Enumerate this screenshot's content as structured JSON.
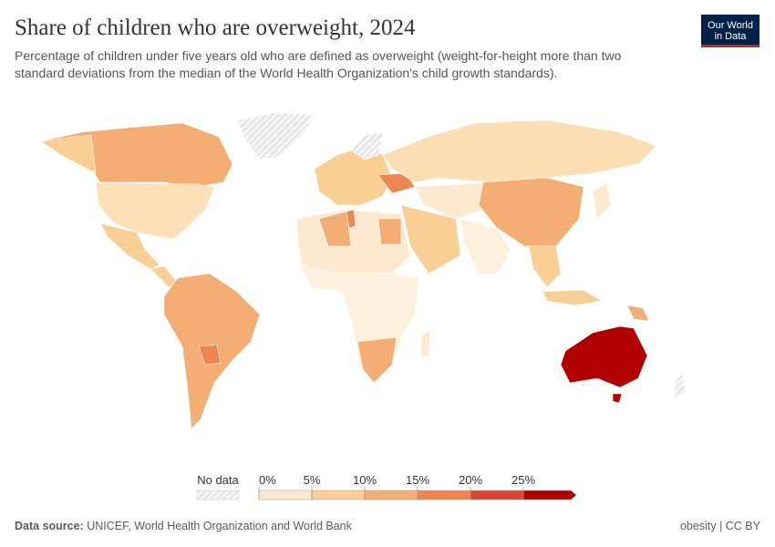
{
  "header": {
    "title": "Share of children who are overweight, 2024",
    "subtitle": [
      "Percentage of children under five years old who are defined as overweight (weight-for-height more than two",
      "standard deviations from the median of the World Health Organization's child growth standards)."
    ],
    "logo": [
      "Our World",
      "in Data"
    ]
  },
  "legend": {
    "no_data_label": "No data",
    "ticks": [
      {
        "value": 0,
        "label": "0%"
      },
      {
        "value": 5,
        "label": "5%"
      },
      {
        "value": 10,
        "label": "10%"
      },
      {
        "value": 15,
        "label": "15%"
      },
      {
        "value": 20,
        "label": "20%"
      },
      {
        "value": 25,
        "label": "25%"
      }
    ],
    "colors": [
      "#fde9cf",
      "#f9cf95",
      "#f4ae73",
      "#ee8651",
      "#d8452f",
      "#b00000"
    ]
  },
  "footer": {
    "source_label": "Data source:",
    "source": "UNICEF, World Health Organization and World Bank",
    "license": "obesity | CC BY"
  }
}
